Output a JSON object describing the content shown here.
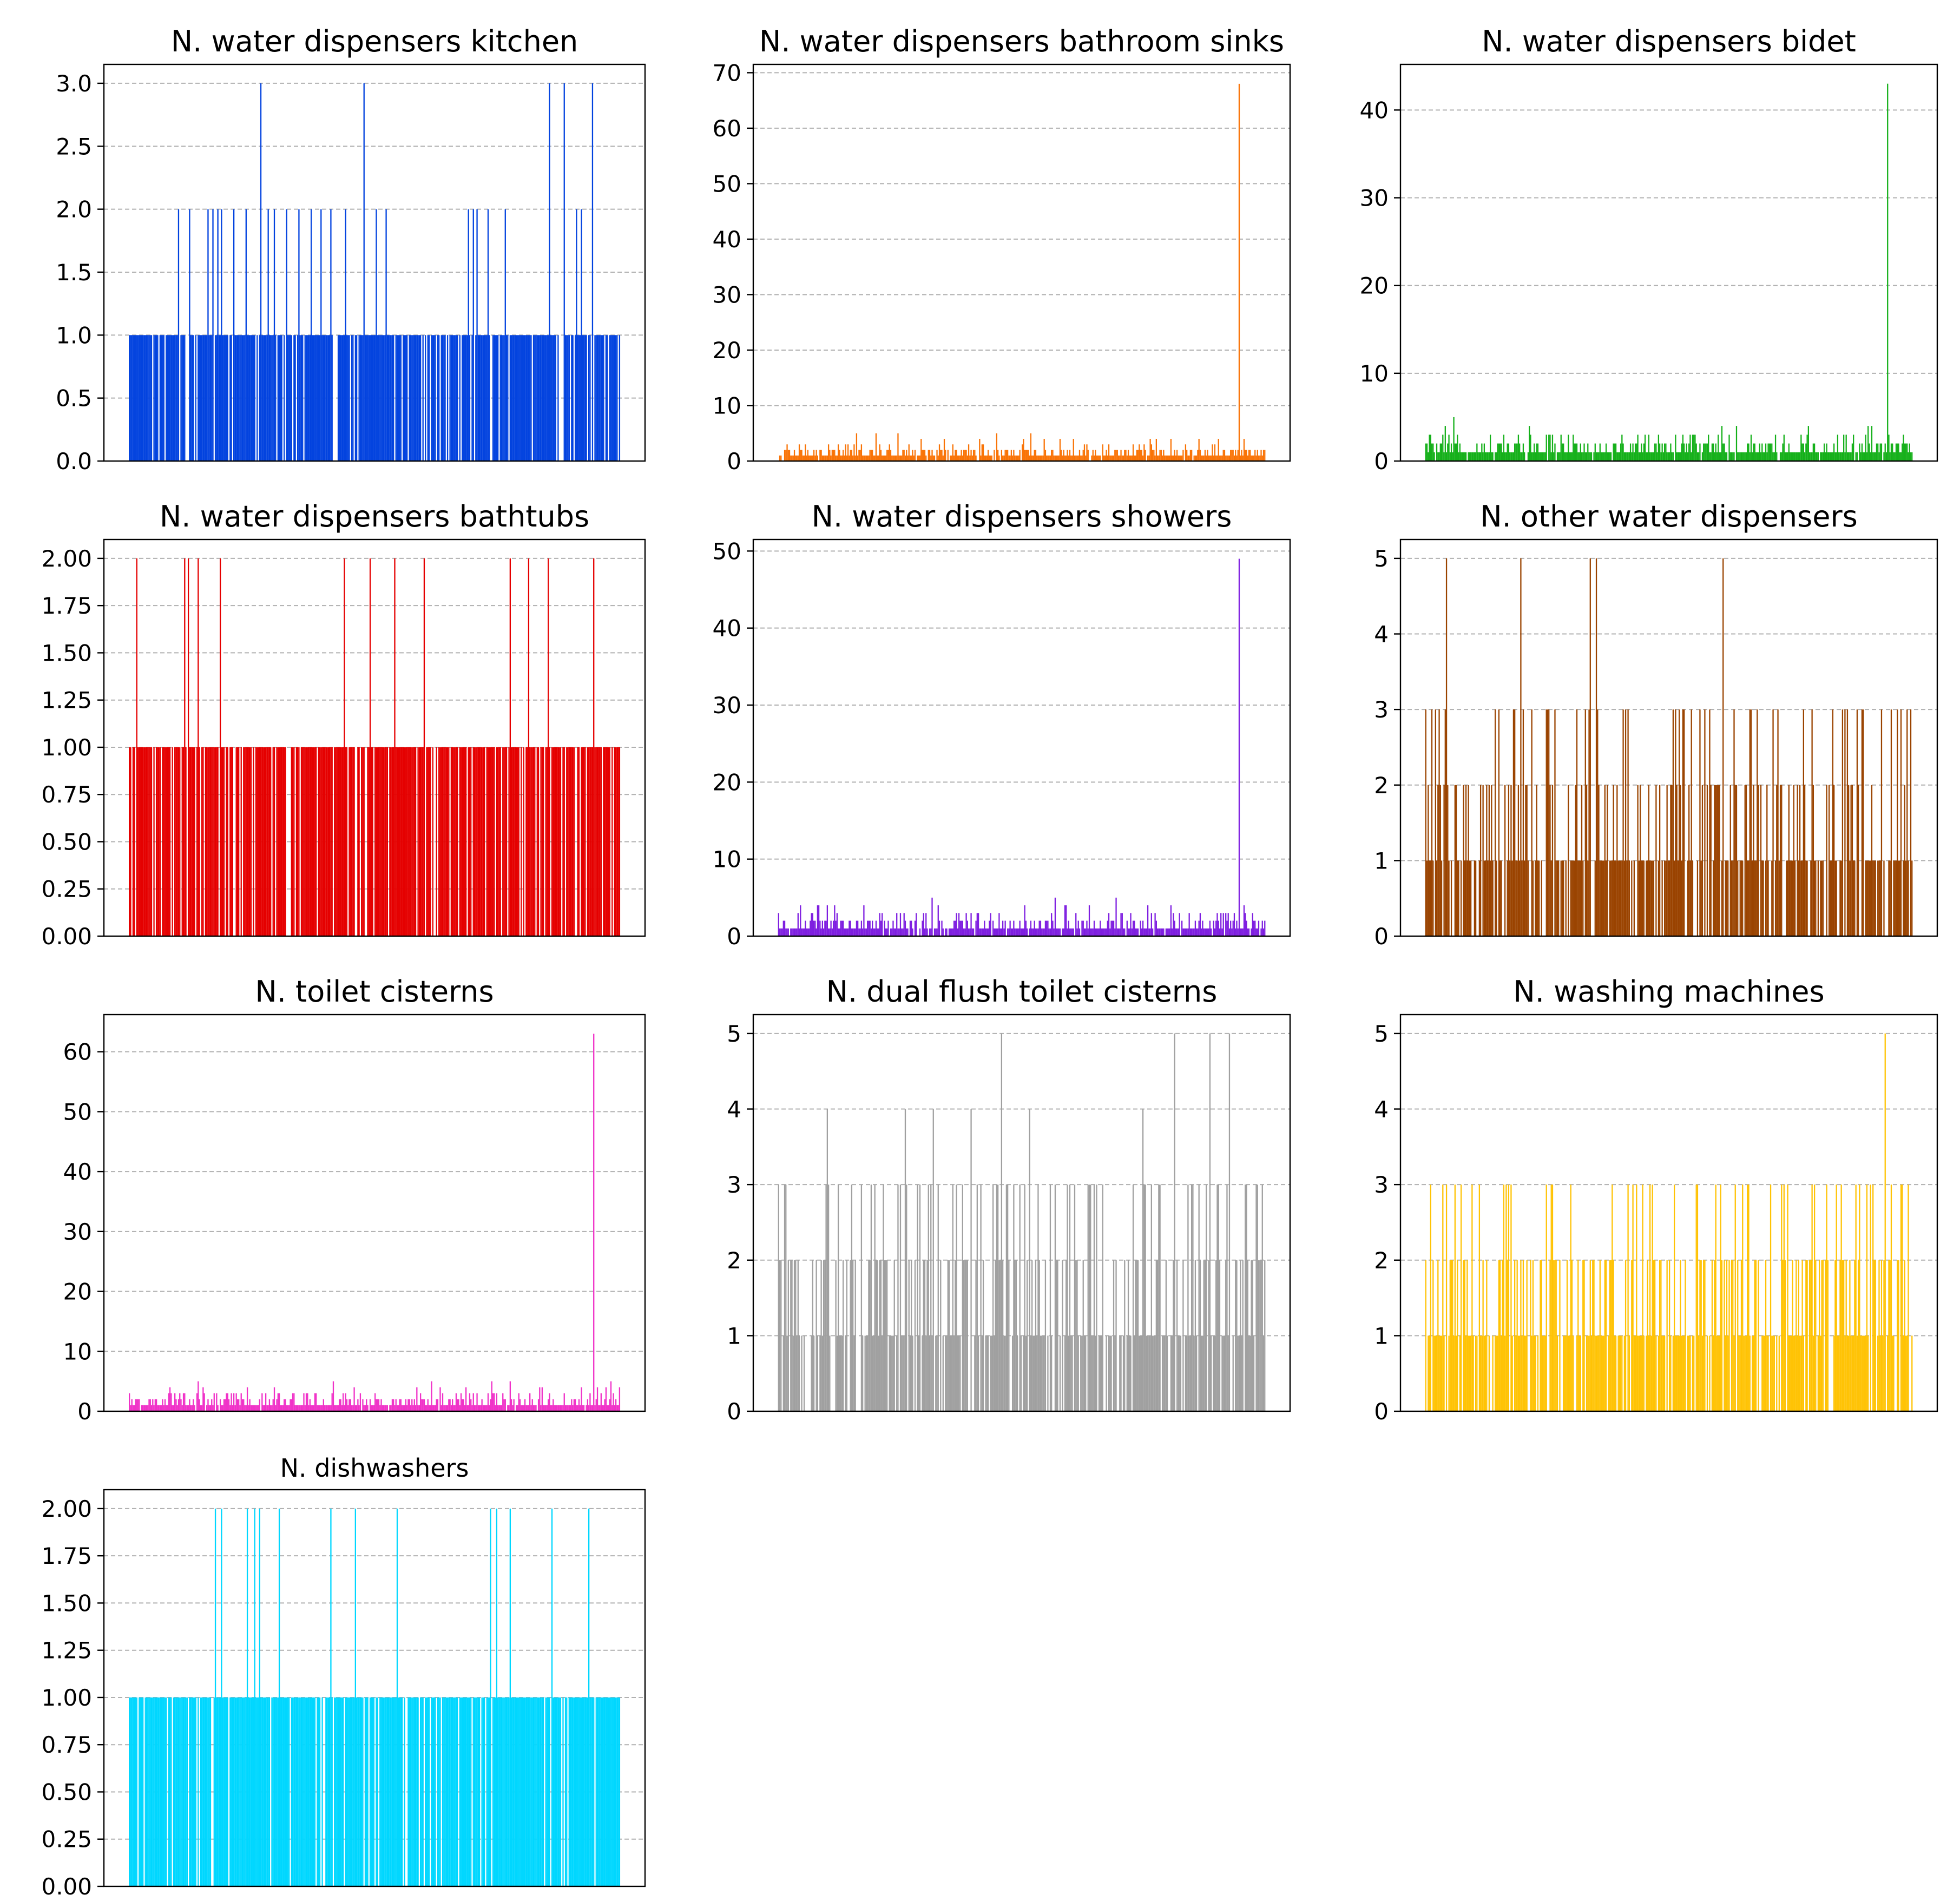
{
  "figure": {
    "bars_per_panel": 400,
    "chart_data": [
      {
        "id": "kitchen",
        "type": "bar",
        "title": "N. water dispensers kitchen",
        "xlabel": "",
        "ylabel": "",
        "ylim": [
          0,
          3.15
        ],
        "grid": "y-dashed",
        "color": "#0343DF",
        "yticks": [
          0,
          0.5,
          1.0,
          1.5,
          2.0,
          2.5,
          3.0
        ],
        "ytick_labels": [
          "0.0",
          "0.5",
          "1.0",
          "1.5",
          "2.0",
          "2.5",
          "3.0"
        ],
        "spikes": [
          [
            40,
            2
          ],
          [
            49,
            2
          ],
          [
            64,
            2
          ],
          [
            68,
            2
          ],
          [
            72,
            2
          ],
          [
            75,
            2
          ],
          [
            85,
            2
          ],
          [
            95,
            2
          ],
          [
            107,
            3
          ],
          [
            113,
            2
          ],
          [
            118,
            2
          ],
          [
            128,
            2
          ],
          [
            138,
            2
          ],
          [
            148,
            2
          ],
          [
            156,
            2
          ],
          [
            164,
            2
          ],
          [
            176,
            2
          ],
          [
            191,
            3
          ],
          [
            201,
            2
          ],
          [
            209,
            2
          ],
          [
            276,
            2
          ],
          [
            280,
            2
          ],
          [
            283,
            2
          ],
          [
            292,
            2
          ],
          [
            306,
            2
          ],
          [
            342,
            3
          ],
          [
            354,
            3
          ],
          [
            364,
            2
          ],
          [
            368,
            2
          ],
          [
            377,
            3
          ]
        ],
        "gaps": [
          [
            0,
            1
          ],
          [
            0,
            0.11
          ],
          [
            0,
            0.11
          ],
          [
            10,
            0.12
          ],
          [
            20,
            0.09
          ]
        ]
      },
      {
        "id": "sinks",
        "type": "bar",
        "title": "N. water dispensers bathroom sinks",
        "xlabel": "",
        "ylabel": "",
        "ylim": [
          0,
          71.5
        ],
        "grid": "y-dashed",
        "color": "#F97306",
        "yticks": [
          0,
          10,
          20,
          30,
          40,
          50,
          60,
          70
        ],
        "ytick_labels": [
          "0",
          "10",
          "20",
          "30",
          "40",
          "50",
          "60",
          "70"
        ],
        "spikes": [
          [
            378,
            68
          ]
        ],
        "gaps": [
          [
            1,
            0.08
          ],
          [
            1,
            5
          ],
          [
            2,
            0.08
          ],
          [
            2,
            0.08
          ],
          [
            3,
            0.08
          ]
        ]
      },
      {
        "id": "bidet",
        "type": "bar",
        "title": "N. water dispensers bidet",
        "xlabel": "",
        "ylabel": "",
        "ylim": [
          0,
          45.2
        ],
        "grid": "y-dashed",
        "color": "#15B01A",
        "yticks": [
          0,
          10,
          20,
          30,
          40
        ],
        "ytick_labels": [
          "0",
          "10",
          "20",
          "30",
          "40"
        ],
        "spikes": [
          [
            379,
            43
          ]
        ],
        "gaps": [
          [
            1,
            0.12
          ],
          [
            1,
            5
          ],
          [
            2,
            0.12
          ],
          [
            2,
            0.12
          ],
          [
            3,
            0.12
          ]
        ]
      },
      {
        "id": "bathtubs",
        "type": "bar",
        "title": "N. water dispensers bathtubs",
        "xlabel": "",
        "ylabel": "",
        "ylim": [
          0,
          2.1
        ],
        "grid": "y-dashed",
        "color": "#E50000",
        "yticks": [
          0,
          0.25,
          0.5,
          0.75,
          1.0,
          1.25,
          1.5,
          1.75,
          2.0
        ],
        "ytick_labels": [
          "0.00",
          "0.25",
          "0.50",
          "0.75",
          "1.00",
          "1.25",
          "1.50",
          "1.75",
          "2.00"
        ],
        "spikes": [
          [
            6,
            2
          ],
          [
            45,
            2
          ],
          [
            48,
            2
          ],
          [
            56,
            2
          ],
          [
            74,
            2
          ],
          [
            175,
            2
          ],
          [
            196,
            2
          ],
          [
            216,
            2
          ],
          [
            240,
            2
          ],
          [
            310,
            2
          ],
          [
            325,
            2
          ],
          [
            341,
            2
          ],
          [
            378,
            2
          ]
        ],
        "gaps": [
          [
            0,
            1
          ],
          [
            0,
            0.3
          ],
          [
            0,
            0.3
          ],
          [
            10,
            0.25
          ],
          [
            20,
            0.28
          ]
        ]
      },
      {
        "id": "showers",
        "type": "bar",
        "title": "N. water dispensers showers",
        "xlabel": "",
        "ylabel": "",
        "ylim": [
          0,
          51.5
        ],
        "grid": "y-dashed",
        "color": "#7E1EE0",
        "yticks": [
          0,
          10,
          20,
          30,
          40,
          50
        ],
        "ytick_labels": [
          "0",
          "10",
          "20",
          "30",
          "40",
          "50"
        ],
        "spikes": [
          [
            378,
            49
          ]
        ],
        "gaps": [
          [
            1,
            0.1
          ],
          [
            1,
            4
          ],
          [
            2,
            0.1
          ],
          [
            2,
            0.1
          ],
          [
            3,
            0.1
          ]
        ]
      },
      {
        "id": "other",
        "type": "bar",
        "title": "N. other water dispensers",
        "xlabel": "",
        "ylabel": "",
        "ylim": [
          0,
          5.25
        ],
        "grid": "y-dashed",
        "color": "#9A4300",
        "yticks": [
          0,
          1,
          2,
          3,
          4,
          5
        ],
        "ytick_labels": [
          "0",
          "1",
          "2",
          "3",
          "4",
          "5"
        ],
        "spikes": [
          [
            0,
            3
          ],
          [
            8,
            3
          ],
          [
            17,
            5
          ],
          [
            60,
            3
          ],
          [
            78,
            5
          ],
          [
            135,
            5
          ],
          [
            140,
            5
          ],
          [
            244,
            5
          ],
          [
            395,
            3
          ],
          [
            398,
            3
          ]
        ],
        "gaps": [
          [
            0,
            1
          ],
          [
            0,
            0.45
          ],
          [
            0,
            0.45
          ],
          [
            10,
            0.4
          ],
          [
            20,
            0.4
          ]
        ]
      },
      {
        "id": "toilet",
        "type": "bar",
        "title": "N. toilet cisterns",
        "xlabel": "",
        "ylabel": "",
        "ylim": [
          0,
          66.2
        ],
        "grid": "y-dashed",
        "color": "#F032C8",
        "yticks": [
          0,
          10,
          20,
          30,
          40,
          50,
          60
        ],
        "ytick_labels": [
          "0",
          "10",
          "20",
          "30",
          "40",
          "50",
          "60"
        ],
        "spikes": [
          [
            378,
            63
          ]
        ],
        "gaps": [
          [
            1,
            0.1
          ],
          [
            1,
            5
          ],
          [
            2,
            0.1
          ],
          [
            2,
            0.1
          ],
          [
            3,
            0.1
          ]
        ]
      },
      {
        "id": "dualflush",
        "type": "bar",
        "title": "N. dual flush toilet cisterns",
        "xlabel": "",
        "ylabel": "",
        "ylim": [
          0,
          5.25
        ],
        "grid": "y-dashed",
        "color": "#A0A0A0",
        "yticks": [
          0,
          1,
          2,
          3,
          4,
          5
        ],
        "ytick_labels": [
          "0",
          "1",
          "2",
          "3",
          "4",
          "5"
        ],
        "spikes": [
          [
            40,
            4
          ],
          [
            104,
            4
          ],
          [
            127,
            4
          ],
          [
            158,
            4
          ],
          [
            183,
            5
          ],
          [
            206,
            4
          ],
          [
            299,
            4
          ],
          [
            325,
            5
          ],
          [
            354,
            5
          ],
          [
            370,
            5
          ]
        ],
        "gaps": [
          [
            0,
            1
          ],
          [
            0,
            0.4
          ],
          [
            0,
            0.4
          ],
          [
            10,
            0.4
          ],
          [
            20,
            0.4
          ]
        ]
      },
      {
        "id": "washing",
        "type": "bar",
        "title": "N. washing machines",
        "xlabel": "",
        "ylabel": "",
        "ylim": [
          0,
          5.25
        ],
        "grid": "y-dashed",
        "color": "#FFC305",
        "yticks": [
          0,
          1,
          2,
          3,
          4,
          5
        ],
        "ytick_labels": [
          "0",
          "1",
          "2",
          "3",
          "4",
          "5"
        ],
        "spikes": [
          [
            0,
            2
          ],
          [
            22,
            2
          ],
          [
            60,
            2
          ],
          [
            64,
            3
          ],
          [
            95,
            2
          ],
          [
            102,
            2
          ],
          [
            182,
            2
          ],
          [
            187,
            2
          ],
          [
            345,
            2
          ],
          [
            352,
            2
          ],
          [
            365,
            3
          ],
          [
            372,
            2
          ],
          [
            377,
            5
          ]
        ],
        "gaps": [
          [
            0,
            1
          ],
          [
            0,
            0.15
          ],
          [
            0,
            0.15
          ],
          [
            10,
            0.1
          ],
          [
            20,
            0.1
          ]
        ]
      },
      {
        "id": "dishwashers",
        "type": "bar",
        "title": "N. dishwashers",
        "xlabel": "",
        "ylabel": "",
        "ylim": [
          0,
          2.1
        ],
        "grid": "y-dashed",
        "color": "#00D7FF",
        "yticks": [
          0,
          0.25,
          0.5,
          0.75,
          1.0,
          1.25,
          1.5,
          1.75,
          2.0
        ],
        "ytick_labels": [
          "0.00",
          "0.25",
          "0.50",
          "0.75",
          "1.00",
          "1.25",
          "1.50",
          "1.75",
          "2.00"
        ],
        "spikes": [
          [
            70,
            2
          ],
          [
            75,
            2
          ],
          [
            96,
            2
          ],
          [
            102,
            2
          ],
          [
            106,
            2
          ],
          [
            122,
            2
          ],
          [
            164,
            2
          ],
          [
            184,
            2
          ],
          [
            218,
            2
          ],
          [
            294,
            2
          ],
          [
            299,
            2
          ],
          [
            310,
            2
          ],
          [
            344,
            2
          ],
          [
            374,
            2
          ]
        ],
        "gaps": [
          [
            0,
            1
          ],
          [
            0,
            0.15
          ],
          [
            0,
            0.15
          ],
          [
            10,
            0.12
          ],
          [
            20,
            0.12
          ]
        ]
      }
    ]
  }
}
